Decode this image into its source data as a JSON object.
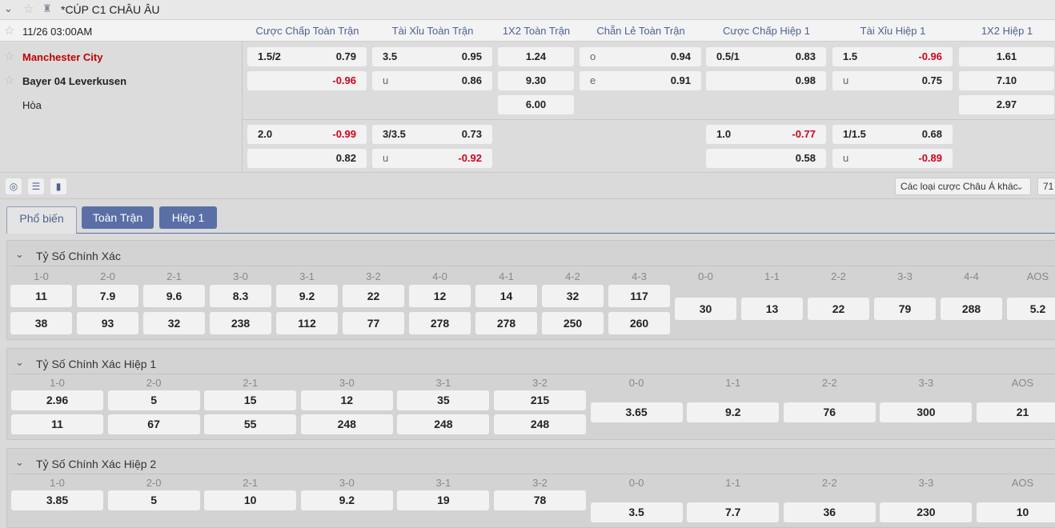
{
  "league": {
    "name": "*CÚP C1 CHÂU ÂU"
  },
  "match": {
    "datetime": "11/26 03:00AM",
    "home": "Manchester City",
    "away": "Bayer 04 Leverkusen",
    "draw": "Hòa"
  },
  "columns": [
    "Cược Chấp Toàn Trận",
    "Tài Xỉu Toàn Trận",
    "1X2 Toàn Trận",
    "Chẵn Lẻ Toàn Trận",
    "Cược Chấp Hiệp 1",
    "Tài Xỉu Hiệp 1",
    "1X2 Hiệp 1"
  ],
  "odds": {
    "ah_ft": [
      {
        "line": "1.5/2",
        "home": "0.79",
        "away": "-0.96"
      },
      {
        "line": "2.0",
        "home": "-0.99",
        "away": "0.82"
      }
    ],
    "ou_ft": [
      {
        "line": "3.5",
        "over": "0.95",
        "u": "u",
        "under": "0.86"
      },
      {
        "line": "3/3.5",
        "over": "0.73",
        "u": "u",
        "under": "-0.92"
      }
    ],
    "x12_ft": {
      "home": "1.24",
      "away": "9.30",
      "draw": "6.00"
    },
    "oe_ft": {
      "o": "o",
      "odd": "0.94",
      "e": "e",
      "even": "0.91"
    },
    "ah_h1": [
      {
        "line": "0.5/1",
        "home": "0.83",
        "away": "0.98"
      },
      {
        "line": "1.0",
        "home": "-0.77",
        "away": "0.58"
      }
    ],
    "ou_h1": [
      {
        "line": "1.5",
        "over": "-0.96",
        "u": "u",
        "under": "0.75"
      },
      {
        "line": "1/1.5",
        "over": "0.68",
        "u": "u",
        "under": "-0.89"
      }
    ],
    "x12_h1": {
      "home": "1.61",
      "away": "7.10",
      "draw": "2.97"
    }
  },
  "toolbar": {
    "dropdown": "Các loại cược Châu Á khác",
    "count": "71"
  },
  "tabs": [
    "Phổ biến",
    "Toàn Trận",
    "Hiệp 1"
  ],
  "sections": [
    {
      "title": "Tỷ Số Chính Xác",
      "scores": [
        "1-0",
        "2-0",
        "2-1",
        "3-0",
        "3-1",
        "3-2",
        "4-0",
        "4-1",
        "4-2",
        "4-3"
      ],
      "home": [
        "11",
        "7.9",
        "9.6",
        "8.3",
        "9.2",
        "22",
        "12",
        "14",
        "32",
        "117"
      ],
      "away": [
        "38",
        "93",
        "32",
        "238",
        "112",
        "77",
        "278",
        "278",
        "250",
        "260"
      ],
      "draws": [
        "0-0",
        "1-1",
        "2-2",
        "3-3",
        "4-4",
        "AOS"
      ],
      "draw_odds": [
        "30",
        "13",
        "22",
        "79",
        "288",
        "5.2"
      ]
    },
    {
      "title": "Tỷ Số Chính Xác Hiệp 1",
      "scores": [
        "1-0",
        "2-0",
        "2-1",
        "3-0",
        "3-1",
        "3-2"
      ],
      "home": [
        "2.96",
        "5",
        "15",
        "12",
        "35",
        "215"
      ],
      "away": [
        "11",
        "67",
        "55",
        "248",
        "248",
        "248"
      ],
      "draws": [
        "0-0",
        "1-1",
        "2-2",
        "3-3",
        "AOS"
      ],
      "draw_odds": [
        "3.65",
        "9.2",
        "76",
        "300",
        "21"
      ]
    },
    {
      "title": "Tỷ Số Chính Xác Hiệp 2",
      "scores": [
        "1-0",
        "2-0",
        "2-1",
        "3-0",
        "3-1",
        "3-2"
      ],
      "home": [
        "3.85",
        "5",
        "10",
        "9.2",
        "19",
        "78"
      ],
      "away": [],
      "draws": [
        "0-0",
        "1-1",
        "2-2",
        "3-3",
        "AOS"
      ],
      "draw_odds": [
        "3.5",
        "7.7",
        "36",
        "230",
        "10"
      ]
    }
  ],
  "colors": {
    "accent": "#5a6fa6",
    "negative": "#d0021b",
    "home_team": "#c00000"
  }
}
